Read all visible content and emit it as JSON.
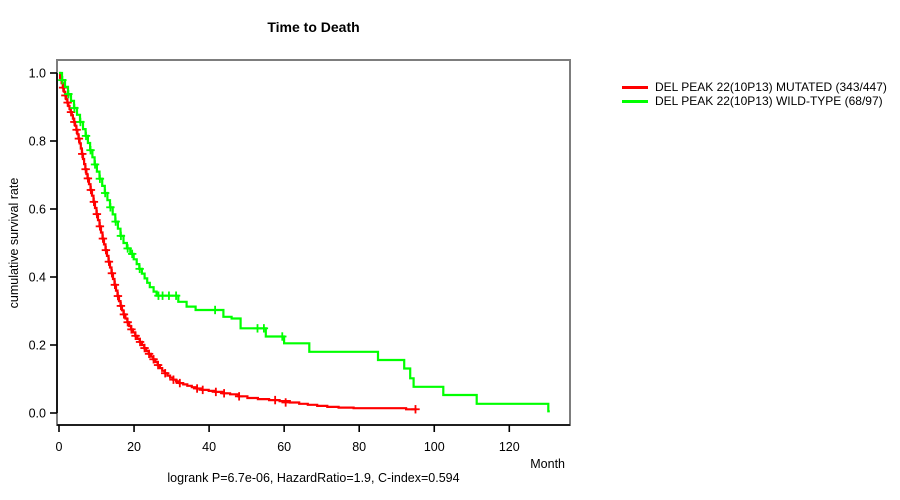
{
  "page": {
    "background": "#ffffff"
  },
  "colors": {
    "axis": "#000000",
    "box_border": "#7d7d7d",
    "mutated": "#ff0000",
    "wild_type": "#00ff00"
  },
  "legend": {
    "items": [
      {
        "label": "DEL PEAK 22(10P13) MUTATED (343/447)",
        "color": "#ff0000"
      },
      {
        "label": "DEL PEAK 22(10P13) WILD-TYPE (68/97)",
        "color": "#00ff00"
      }
    ]
  },
  "chart_data": {
    "type": "line",
    "variant": "kaplan_meier_step",
    "title": "Time to Death",
    "xlabel": "Month",
    "ylabel": "cumulative survival rate",
    "annotation": "logrank P=6.7e-06, HazardRatio=1.9, C-index=0.594",
    "grid": false,
    "legend_position": "outside-top-right",
    "xlim": [
      0,
      131
    ],
    "ylim": [
      0.0,
      1.0
    ],
    "x_tick_values": [
      0,
      20,
      40,
      60,
      80,
      100,
      120
    ],
    "x_tick_labels": [
      "0",
      "20",
      "40",
      "60",
      "80",
      "100",
      "120"
    ],
    "y_tick_values": [
      0.0,
      0.2,
      0.4,
      0.6,
      0.8,
      1.0
    ],
    "y_tick_labels": [
      "0.0",
      "0.2",
      "0.4",
      "0.6",
      "0.8",
      "1.0"
    ],
    "series": [
      {
        "name": "DEL PEAK 22(10P13) MUTATED (343/447)",
        "color": "#ff0000",
        "end_month": 95.3,
        "points": [
          [
            0,
            1.0
          ],
          [
            0.3,
            0.985
          ],
          [
            0.7,
            0.97
          ],
          [
            1.0,
            0.957
          ],
          [
            1.3,
            0.945
          ],
          [
            1.6,
            0.934
          ],
          [
            1.9,
            0.923
          ],
          [
            2.2,
            0.913
          ],
          [
            2.5,
            0.903
          ],
          [
            2.8,
            0.894
          ],
          [
            3.1,
            0.885
          ],
          [
            3.4,
            0.876
          ],
          [
            3.7,
            0.866
          ],
          [
            4.0,
            0.856
          ],
          [
            4.3,
            0.845
          ],
          [
            4.6,
            0.833
          ],
          [
            4.9,
            0.82
          ],
          [
            5.2,
            0.807
          ],
          [
            5.5,
            0.793
          ],
          [
            5.8,
            0.778
          ],
          [
            6.1,
            0.762
          ],
          [
            6.4,
            0.747
          ],
          [
            6.7,
            0.732
          ],
          [
            7.0,
            0.717
          ],
          [
            7.3,
            0.703
          ],
          [
            7.6,
            0.69
          ],
          [
            8.0,
            0.673
          ],
          [
            8.4,
            0.656
          ],
          [
            8.8,
            0.639
          ],
          [
            9.2,
            0.621
          ],
          [
            9.6,
            0.603
          ],
          [
            10.0,
            0.585
          ],
          [
            10.4,
            0.567
          ],
          [
            10.8,
            0.549
          ],
          [
            11.2,
            0.531
          ],
          [
            11.6,
            0.513
          ],
          [
            12.0,
            0.496
          ],
          [
            12.4,
            0.479
          ],
          [
            12.8,
            0.462
          ],
          [
            13.2,
            0.445
          ],
          [
            13.6,
            0.428
          ],
          [
            14.0,
            0.411
          ],
          [
            14.4,
            0.394
          ],
          [
            14.8,
            0.377
          ],
          [
            15.2,
            0.36
          ],
          [
            15.6,
            0.344
          ],
          [
            16.0,
            0.329
          ],
          [
            16.4,
            0.315
          ],
          [
            16.8,
            0.302
          ],
          [
            17.2,
            0.29
          ],
          [
            17.7,
            0.278
          ],
          [
            18.2,
            0.267
          ],
          [
            18.7,
            0.256
          ],
          [
            19.2,
            0.246
          ],
          [
            19.7,
            0.237
          ],
          [
            20.3,
            0.227
          ],
          [
            20.9,
            0.218
          ],
          [
            21.5,
            0.209
          ],
          [
            22.1,
            0.2
          ],
          [
            22.7,
            0.191
          ],
          [
            23.3,
            0.182
          ],
          [
            23.9,
            0.174
          ],
          [
            24.5,
            0.166
          ],
          [
            25.1,
            0.158
          ],
          [
            25.7,
            0.15
          ],
          [
            26.3,
            0.141
          ],
          [
            26.9,
            0.132
          ],
          [
            27.5,
            0.124
          ],
          [
            28.2,
            0.117
          ],
          [
            28.9,
            0.11
          ],
          [
            29.6,
            0.104
          ],
          [
            30.4,
            0.098
          ],
          [
            31.2,
            0.093
          ],
          [
            32.1,
            0.088
          ],
          [
            33.1,
            0.084
          ],
          [
            34.2,
            0.08
          ],
          [
            35.4,
            0.076
          ],
          [
            36.7,
            0.072
          ],
          [
            38.2,
            0.068
          ],
          [
            39.9,
            0.065
          ],
          [
            41.7,
            0.062
          ],
          [
            43.6,
            0.058
          ],
          [
            45.6,
            0.055
          ],
          [
            47.8,
            0.049
          ],
          [
            50.2,
            0.044
          ],
          [
            53.0,
            0.041
          ],
          [
            56.0,
            0.038
          ],
          [
            58.8,
            0.035
          ],
          [
            61.5,
            0.031
          ],
          [
            64.0,
            0.027
          ],
          [
            66.3,
            0.024
          ],
          [
            68.8,
            0.021
          ],
          [
            71.5,
            0.018
          ],
          [
            74.5,
            0.016
          ],
          [
            78.5,
            0.014
          ],
          [
            92.5,
            0.011
          ]
        ],
        "censors": [
          [
            1.1,
            0.957
          ],
          [
            1.7,
            0.934
          ],
          [
            2.3,
            0.913
          ],
          [
            3.2,
            0.885
          ],
          [
            4.1,
            0.856
          ],
          [
            4.7,
            0.833
          ],
          [
            5.3,
            0.807
          ],
          [
            6.2,
            0.762
          ],
          [
            7.1,
            0.717
          ],
          [
            7.7,
            0.69
          ],
          [
            8.5,
            0.656
          ],
          [
            9.3,
            0.621
          ],
          [
            10.1,
            0.585
          ],
          [
            10.9,
            0.549
          ],
          [
            11.7,
            0.513
          ],
          [
            12.5,
            0.479
          ],
          [
            13.3,
            0.445
          ],
          [
            14.1,
            0.411
          ],
          [
            14.9,
            0.377
          ],
          [
            15.7,
            0.344
          ],
          [
            16.5,
            0.315
          ],
          [
            17.3,
            0.29
          ],
          [
            18.3,
            0.267
          ],
          [
            19.3,
            0.246
          ],
          [
            20.4,
            0.227
          ],
          [
            21.6,
            0.209
          ],
          [
            22.8,
            0.191
          ],
          [
            24.0,
            0.174
          ],
          [
            25.2,
            0.158
          ],
          [
            26.4,
            0.141
          ],
          [
            28.3,
            0.117
          ],
          [
            30.5,
            0.098
          ],
          [
            32.2,
            0.088
          ],
          [
            36.8,
            0.072
          ],
          [
            38.3,
            0.068
          ],
          [
            41.8,
            0.062
          ],
          [
            44.0,
            0.058
          ],
          [
            48.0,
            0.049
          ],
          [
            57.6,
            0.038
          ],
          [
            60.4,
            0.031
          ],
          [
            95.0,
            0.011
          ]
        ]
      },
      {
        "name": "DEL PEAK 22(10P13) WILD-TYPE (68/97)",
        "color": "#00ff00",
        "end_month": 130.8,
        "points": [
          [
            0,
            1.0
          ],
          [
            0.8,
            0.979
          ],
          [
            1.6,
            0.959
          ],
          [
            2.4,
            0.938
          ],
          [
            3.2,
            0.918
          ],
          [
            4.0,
            0.897
          ],
          [
            4.8,
            0.877
          ],
          [
            5.6,
            0.856
          ],
          [
            6.4,
            0.835
          ],
          [
            7.1,
            0.815
          ],
          [
            7.7,
            0.794
          ],
          [
            8.3,
            0.773
          ],
          [
            8.9,
            0.752
          ],
          [
            9.5,
            0.731
          ],
          [
            10.1,
            0.71
          ],
          [
            10.8,
            0.689
          ],
          [
            11.5,
            0.668
          ],
          [
            12.2,
            0.647
          ],
          [
            12.9,
            0.626
          ],
          [
            13.6,
            0.605
          ],
          [
            14.3,
            0.584
          ],
          [
            15.0,
            0.563
          ],
          [
            15.7,
            0.542
          ],
          [
            16.4,
            0.521
          ],
          [
            17.2,
            0.5
          ],
          [
            18.1,
            0.484
          ],
          [
            19.0,
            0.468
          ],
          [
            19.9,
            0.452
          ],
          [
            20.7,
            0.438
          ],
          [
            21.4,
            0.424
          ],
          [
            22.1,
            0.41
          ],
          [
            22.8,
            0.396
          ],
          [
            23.5,
            0.383
          ],
          [
            24.2,
            0.37
          ],
          [
            25.2,
            0.357
          ],
          [
            26.0,
            0.345
          ],
          [
            31.8,
            0.327
          ],
          [
            34.0,
            0.313
          ],
          [
            36.4,
            0.303
          ],
          [
            43.8,
            0.283
          ],
          [
            46.0,
            0.278
          ],
          [
            48.4,
            0.249
          ],
          [
            55.1,
            0.225
          ],
          [
            60.0,
            0.205
          ],
          [
            66.7,
            0.18
          ],
          [
            85.0,
            0.156
          ],
          [
            92.0,
            0.131
          ],
          [
            93.6,
            0.102
          ],
          [
            94.5,
            0.077
          ],
          [
            102.4,
            0.053
          ],
          [
            111.3,
            0.027
          ],
          [
            130.4,
            0.005
          ]
        ],
        "censors": [
          [
            0.9,
            0.979
          ],
          [
            2.5,
            0.938
          ],
          [
            4.1,
            0.897
          ],
          [
            5.7,
            0.856
          ],
          [
            7.2,
            0.815
          ],
          [
            8.4,
            0.773
          ],
          [
            9.6,
            0.731
          ],
          [
            10.9,
            0.689
          ],
          [
            12.3,
            0.647
          ],
          [
            13.7,
            0.605
          ],
          [
            15.1,
            0.563
          ],
          [
            16.5,
            0.521
          ],
          [
            18.3,
            0.484
          ],
          [
            19.5,
            0.468
          ],
          [
            21.5,
            0.424
          ],
          [
            26.5,
            0.345
          ],
          [
            27.6,
            0.345
          ],
          [
            29.3,
            0.345
          ],
          [
            31.2,
            0.345
          ],
          [
            41.6,
            0.303
          ],
          [
            52.9,
            0.249
          ],
          [
            54.6,
            0.249
          ],
          [
            59.5,
            0.225
          ]
        ]
      }
    ]
  }
}
